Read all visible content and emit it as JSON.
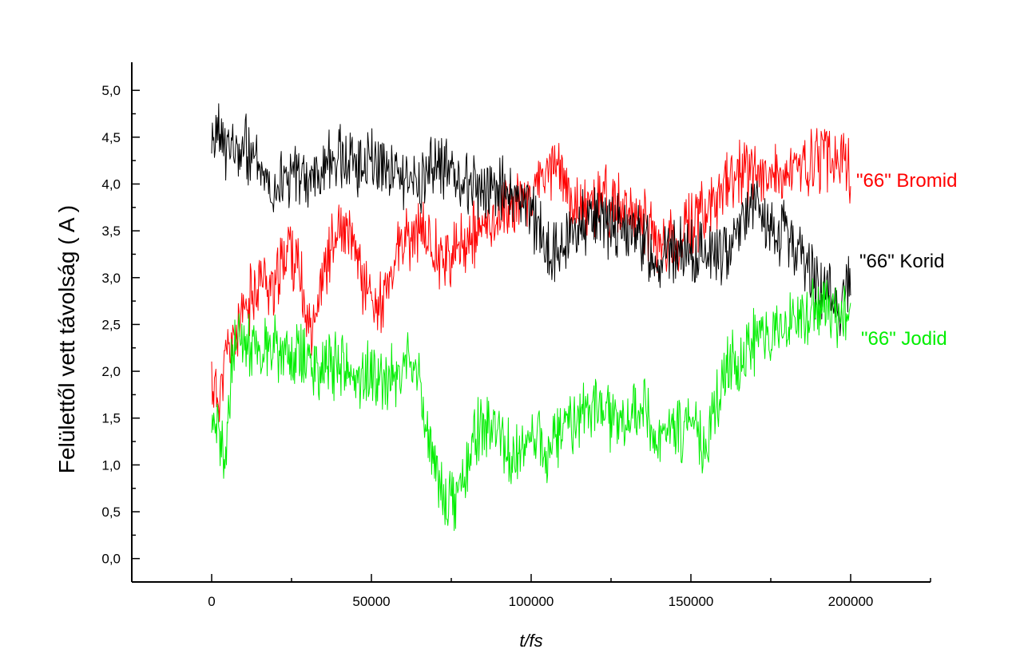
{
  "chart_data": {
    "type": "line",
    "title": "",
    "xlabel": "t/fs",
    "ylabel": "Felülettől vett távolság ( A )",
    "ylabel_unit_glyph": "Å",
    "xlim": [
      -25000,
      225000
    ],
    "ylim": [
      -0.25,
      5.3
    ],
    "x_ticks": [
      0,
      50000,
      100000,
      150000,
      200000
    ],
    "x_tick_labels": [
      "0",
      "50000",
      "100000",
      "150000",
      "200000"
    ],
    "y_ticks": [
      0,
      0.5,
      1,
      1.5,
      2,
      2.5,
      3,
      3.5,
      4,
      4.5,
      5
    ],
    "y_tick_labels": [
      "0,0",
      "0,5",
      "1,0",
      "1,5",
      "2,0",
      "2,5",
      "3,0",
      "3,5",
      "4,0",
      "4,5",
      "5,0"
    ],
    "grid": false,
    "legend": "right-side labels",
    "series": [
      {
        "name": "\"66\" Bromid",
        "color": "#ff0000",
        "x": [
          0,
          2000,
          5000,
          10000,
          15000,
          20000,
          24000,
          27000,
          30000,
          33000,
          36000,
          40000,
          45000,
          48000,
          52000,
          55000,
          58000,
          62000,
          66000,
          70000,
          75000,
          80000,
          85000,
          90000,
          95000,
          100000,
          105000,
          108000,
          112000,
          118000,
          122000,
          126000,
          130000,
          134000,
          138000,
          142000,
          146000,
          150000,
          154000,
          158000,
          162000,
          166000,
          170000,
          174000,
          178000,
          182000,
          186000,
          190000,
          194000,
          197000,
          200000
        ],
        "y": [
          1.9,
          1.7,
          2.2,
          2.6,
          3.0,
          2.9,
          3.4,
          3.1,
          2.5,
          2.7,
          3.2,
          3.5,
          3.3,
          2.9,
          2.7,
          2.8,
          3.3,
          3.4,
          3.5,
          3.3,
          3.2,
          3.4,
          3.5,
          3.7,
          3.8,
          3.9,
          4.1,
          4.3,
          3.8,
          3.7,
          3.9,
          3.8,
          3.6,
          3.7,
          3.5,
          3.3,
          3.4,
          3.6,
          3.7,
          3.8,
          4.0,
          4.1,
          4.2,
          4.1,
          4.0,
          4.1,
          4.2,
          4.3,
          4.3,
          4.2,
          4.1
        ]
      },
      {
        "name": "\"66\" Korid",
        "color": "#000000",
        "x": [
          0,
          3000,
          7000,
          10000,
          15000,
          20000,
          25000,
          30000,
          35000,
          40000,
          45000,
          50000,
          55000,
          60000,
          65000,
          70000,
          75000,
          80000,
          85000,
          90000,
          95000,
          100000,
          104000,
          108000,
          112000,
          116000,
          120000,
          125000,
          130000,
          135000,
          140000,
          145000,
          150000,
          155000,
          160000,
          165000,
          170000,
          175000,
          180000,
          185000,
          190000,
          194000,
          197000,
          200000
        ],
        "y": [
          4.4,
          4.5,
          4.3,
          4.4,
          4.2,
          4.0,
          4.1,
          4.0,
          4.2,
          4.3,
          4.2,
          4.3,
          4.2,
          4.1,
          4.0,
          4.2,
          4.1,
          4.0,
          3.9,
          4.0,
          3.8,
          3.7,
          3.4,
          3.2,
          3.5,
          3.6,
          3.7,
          3.6,
          3.5,
          3.4,
          3.2,
          3.3,
          3.2,
          3.3,
          3.2,
          3.6,
          3.8,
          3.4,
          3.5,
          3.2,
          2.9,
          2.8,
          2.7,
          3.0
        ]
      },
      {
        "name": "\"66\" Jodid",
        "color": "#00ee00",
        "x": [
          0,
          2000,
          4000,
          7000,
          10000,
          15000,
          20000,
          25000,
          30000,
          35000,
          40000,
          45000,
          50000,
          55000,
          60000,
          64000,
          67000,
          70000,
          73000,
          76000,
          79000,
          82000,
          86000,
          90000,
          95000,
          100000,
          105000,
          110000,
          115000,
          120000,
          125000,
          130000,
          135000,
          139000,
          142000,
          145000,
          150000,
          155000,
          160000,
          165000,
          170000,
          175000,
          180000,
          185000,
          190000,
          195000,
          200000
        ],
        "y": [
          1.2,
          1.3,
          1.0,
          2.3,
          2.4,
          2.2,
          2.3,
          2.1,
          2.2,
          2.0,
          2.1,
          1.9,
          2.0,
          1.9,
          2.1,
          2.0,
          1.5,
          1.0,
          0.6,
          0.6,
          0.9,
          1.3,
          1.4,
          1.3,
          1.0,
          1.3,
          1.2,
          1.4,
          1.5,
          1.6,
          1.5,
          1.4,
          1.6,
          1.2,
          1.3,
          1.4,
          1.3,
          1.2,
          2.0,
          2.1,
          2.3,
          2.4,
          2.4,
          2.6,
          2.7,
          2.6,
          2.5
        ]
      }
    ]
  }
}
